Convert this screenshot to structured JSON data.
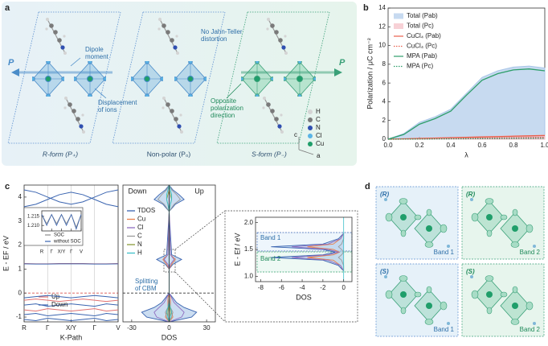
{
  "panel_labels": [
    "a",
    "b",
    "c",
    "d"
  ],
  "panel_a": {
    "annotations": [
      "Dipole moment",
      "No Jahn-Teller distortion",
      "Displacement of ions",
      "Opposite polarization direction"
    ],
    "polarization_symbols": [
      "P",
      "P"
    ],
    "legend": [
      {
        "name": "H",
        "color": "#d4d4d4"
      },
      {
        "name": "C",
        "color": "#7a7a7a"
      },
      {
        "name": "N",
        "color": "#2f4fb0"
      },
      {
        "name": "Cl",
        "color": "#5ab4e6"
      },
      {
        "name": "Cu",
        "color": "#1f9e6a"
      }
    ],
    "forms": [
      "R-form (P₊)",
      "Non-polar (P₀)",
      "S-form (P₋)"
    ],
    "axes": [
      "c",
      "a"
    ]
  },
  "chart_data": [
    {
      "type": "line",
      "xlabel": "λ",
      "ylabel": "Polarization / μC cm⁻²",
      "x": [
        0,
        0.1,
        0.2,
        0.3,
        0.4,
        0.5,
        0.6,
        0.7,
        0.8,
        0.9,
        1
      ],
      "xlim": [
        0,
        1
      ],
      "xticks": [
        {
          "value": 0,
          "label": "0.0"
        },
        {
          "value": 0.2,
          "label": "0.2"
        },
        {
          "value": 0.4,
          "label": "0.4"
        },
        {
          "value": 0.6,
          "label": "0.6"
        },
        {
          "value": 0.8,
          "label": "0.8"
        },
        {
          "value": 1,
          "label": "1.0"
        }
      ],
      "ylim": [
        0,
        14
      ],
      "yticks": [
        0,
        2,
        4,
        6,
        8,
        10,
        12,
        14
      ],
      "legend": "upper left",
      "series": [
        {
          "name": "Total (Pab)",
          "color": "#a9c6e8",
          "style": "area",
          "values": [
            0,
            0.6,
            1.8,
            2.4,
            3.2,
            4.9,
            6.6,
            7.3,
            7.7,
            7.8,
            7.6
          ]
        },
        {
          "name": "Total (Pc)",
          "color": "#f2b8c0",
          "style": "area",
          "values": [
            0,
            0.05,
            0.1,
            0.14,
            0.18,
            0.22,
            0.27,
            0.31,
            0.35,
            0.39,
            0.43
          ]
        },
        {
          "name": "CuCl₄ (Pab)",
          "color": "#e8604c",
          "style": "solid",
          "values": [
            0,
            0.04,
            0.08,
            0.12,
            0.16,
            0.2,
            0.24,
            0.28,
            0.32,
            0.36,
            0.4
          ]
        },
        {
          "name": "CuCl₄ (Pc)",
          "color": "#e8604c",
          "style": "dotted",
          "values": [
            0,
            0.02,
            0.04,
            0.06,
            0.08,
            0.1,
            0.12,
            0.14,
            0.16,
            0.18,
            0.2
          ]
        },
        {
          "name": "MPA (Pab)",
          "color": "#2e9e6a",
          "style": "solid",
          "values": [
            0,
            0.5,
            1.6,
            2.2,
            3.0,
            4.7,
            6.3,
            7.0,
            7.4,
            7.5,
            7.3
          ]
        },
        {
          "name": "MPA (Pc)",
          "color": "#2e9e6a",
          "style": "dotted",
          "values": [
            0,
            0.01,
            0.02,
            0.03,
            0.04,
            0.05,
            0.06,
            0.07,
            0.08,
            0.09,
            0.1
          ]
        }
      ]
    },
    {
      "type": "band-structure",
      "xlabel": "K-Path",
      "ylabel": "E - EF / eV",
      "x": [
        0,
        0.5,
        1,
        1.5,
        2,
        2.5,
        3,
        3.5,
        4
      ],
      "xlim": [
        0,
        4
      ],
      "xticks": [
        {
          "value": 0,
          "label": "R"
        },
        {
          "value": 1,
          "label": "Γ"
        },
        {
          "value": 2,
          "label": "X/Y"
        },
        {
          "value": 3,
          "label": "Γ"
        },
        {
          "value": 4,
          "label": "V"
        }
      ],
      "ylim": [
        -1.2,
        4.5
      ],
      "yticks": [
        -1,
        0,
        1,
        2,
        3,
        4
      ],
      "series": [
        {
          "name": "Up",
          "color": "#e07070",
          "bands": [
            [
              1.23,
              1.22,
              1.22,
              1.23,
              1.23,
              1.23,
              1.22,
              1.22,
              1.23
            ],
            [
              -0.3,
              -0.25,
              -0.3,
              -0.35,
              -0.3,
              -0.25,
              -0.3,
              -0.35,
              -0.3
            ],
            [
              -0.7,
              -0.75,
              -0.65,
              -0.7,
              -0.75,
              -0.7,
              -0.65,
              -0.75,
              -0.7
            ]
          ]
        },
        {
          "name": "Down",
          "color": "#3a64b0",
          "bands": [
            [
              4.3,
              4.2,
              4.0,
              3.8,
              3.7,
              3.8,
              4.0,
              4.2,
              4.3
            ],
            [
              3.6,
              3.7,
              3.9,
              4.1,
              4.2,
              4.1,
              3.9,
              3.7,
              3.6
            ],
            [
              1.22,
              1.21,
              1.21,
              1.22,
              1.22,
              1.22,
              1.21,
              1.21,
              1.22
            ],
            [
              -0.2,
              -0.15,
              -0.1,
              -0.15,
              -0.2,
              -0.15,
              -0.1,
              -0.15,
              -0.2
            ],
            [
              -0.5,
              -0.45,
              -0.55,
              -0.5,
              -0.45,
              -0.5,
              -0.55,
              -0.45,
              -0.5
            ],
            [
              -0.9,
              -0.85,
              -0.95,
              -0.9,
              -0.85,
              -0.9,
              -0.95,
              -0.85,
              -0.9
            ],
            [
              -1.1,
              -1.15,
              -1.05,
              -1.1,
              -1.15,
              -1.1,
              -1.05,
              -1.15,
              -1.1
            ]
          ]
        }
      ]
    },
    {
      "type": "line",
      "x": [
        0,
        0.5,
        1,
        1.5,
        2,
        2.5,
        3,
        3.5,
        4
      ],
      "xlim": [
        0,
        4
      ],
      "xticks": [
        {
          "value": 0,
          "label": "R"
        },
        {
          "value": 1,
          "label": "Γ"
        },
        {
          "value": 2,
          "label": "X/Y"
        },
        {
          "value": 3,
          "label": "Γ"
        },
        {
          "value": 4,
          "label": "V"
        }
      ],
      "ylim": [
        1.207,
        1.218
      ],
      "yticks": [
        {
          "value": 1.21,
          "label": "1.210"
        },
        {
          "value": 1.215,
          "label": "1.215"
        }
      ],
      "legend": "lower center",
      "series": [
        {
          "name": "SOC",
          "color": "#8c8c8c",
          "style": "solid",
          "values": [
            1.216,
            1.211,
            1.216,
            1.211,
            1.216,
            1.211,
            1.216,
            1.209,
            1.216
          ]
        },
        {
          "name": "without SOC",
          "color": "#3a64b0",
          "style": "solid",
          "values": [
            1.216,
            1.21,
            1.216,
            1.21,
            1.216,
            1.21,
            1.216,
            1.208,
            1.216
          ]
        }
      ]
    },
    {
      "type": "dos",
      "xlabel": "DOS",
      "spin_labels": [
        "Down",
        "Up"
      ],
      "xlim": [
        -37,
        37
      ],
      "xticks": [
        -30,
        0,
        30
      ],
      "ylim": [
        -1.2,
        4.5
      ],
      "energies": [
        -1.2,
        -1.0,
        -0.8,
        -0.6,
        -0.4,
        -0.2,
        0,
        1.0,
        1.2,
        1.4,
        1.6,
        3.4,
        3.7,
        3.9,
        4.1,
        4.3,
        4.5
      ],
      "series": [
        {
          "name": "TDOS",
          "color": "#3a64b0",
          "down": [
            0,
            -18,
            -22,
            -12,
            -6,
            -3,
            0,
            0,
            -3,
            -10,
            -2,
            0,
            -5,
            -12,
            -8,
            -3,
            0
          ],
          "up": [
            0,
            18,
            22,
            12,
            6,
            3,
            0,
            0,
            3,
            10,
            2,
            0,
            5,
            12,
            8,
            3,
            0
          ]
        },
        {
          "name": "Cu",
          "color": "#e8804c",
          "down": [
            0,
            -3,
            -2,
            -1,
            -1,
            -1,
            0,
            0,
            -2,
            -5,
            -1,
            0,
            0,
            0,
            0,
            0,
            0
          ],
          "up": [
            0,
            3,
            2,
            1,
            1,
            1,
            0,
            0,
            2,
            5,
            1,
            0,
            0,
            0,
            0,
            0,
            0
          ]
        },
        {
          "name": "Cl",
          "color": "#8f6cc0",
          "down": [
            0,
            -10,
            -12,
            -8,
            -4,
            -2,
            0,
            0,
            -1,
            -4,
            -1,
            0,
            0,
            0,
            0,
            0,
            0
          ],
          "up": [
            0,
            10,
            12,
            8,
            4,
            2,
            0,
            0,
            1,
            4,
            1,
            0,
            0,
            0,
            0,
            0,
            0
          ]
        },
        {
          "name": "C",
          "color": "#9a9a9a",
          "down": [
            0,
            -2,
            -3,
            -1,
            -0.5,
            0,
            0,
            0,
            0,
            0,
            0,
            0,
            -4,
            -9,
            -6,
            -2,
            0
          ],
          "up": [
            0,
            2,
            3,
            1,
            0.5,
            0,
            0,
            0,
            0,
            0,
            0,
            0,
            4,
            9,
            6,
            2,
            0
          ]
        },
        {
          "name": "N",
          "color": "#8a9a3a",
          "down": [
            0,
            -1,
            -1,
            -0.5,
            0,
            0,
            0,
            0,
            0,
            0,
            0,
            0,
            -1,
            -2,
            -1,
            0,
            0
          ],
          "up": [
            0,
            1,
            1,
            0.5,
            0,
            0,
            0,
            0,
            0,
            0,
            0,
            0,
            1,
            2,
            1,
            0,
            0
          ]
        },
        {
          "name": "H",
          "color": "#3bbfc9",
          "down": [
            0,
            -1,
            -2,
            -1,
            0,
            0,
            0,
            0,
            0,
            0,
            0,
            0,
            -1,
            -2,
            -2,
            -1,
            0
          ],
          "up": [
            0,
            1,
            2,
            1,
            0,
            0,
            0,
            0,
            0,
            0,
            0,
            0,
            1,
            2,
            2,
            1,
            0
          ]
        }
      ]
    },
    {
      "type": "dos",
      "xlabel": "DOS",
      "ylabel": "E - Ef / eV",
      "box_labels": [
        "Band 1",
        "Band 2"
      ],
      "xlim": [
        -8.5,
        0.8
      ],
      "xticks": [
        -8,
        -6,
        -4,
        -2,
        0
      ],
      "ylim": [
        0.9,
        2.1
      ],
      "yticks": [
        {
          "value": 1,
          "label": "1.0"
        },
        {
          "value": 1.5,
          "label": "1.5"
        },
        {
          "value": 2,
          "label": "2.0"
        }
      ],
      "energies": [
        1.1,
        1.2,
        1.3,
        1.35,
        1.4,
        1.45,
        1.5,
        1.55,
        1.6,
        1.7,
        1.8
      ],
      "series": [
        {
          "color": "#3a64b0",
          "down": [
            0,
            -0.5,
            -2,
            -7,
            -2,
            -0.8,
            -2,
            -7,
            -2,
            -0.5,
            0
          ]
        },
        {
          "color": "#e8804c",
          "down": [
            0,
            -0.3,
            -1,
            -3.5,
            -1,
            -0.4,
            -1,
            -3.5,
            -1,
            -0.3,
            0
          ]
        },
        {
          "color": "#8f6cc0",
          "down": [
            0,
            -0.3,
            -1.5,
            -5,
            -1.5,
            -0.5,
            -1.5,
            -5,
            -1.5,
            -0.3,
            0
          ]
        },
        {
          "color": "#9a9a9a",
          "down": [
            0,
            0,
            -0.2,
            -0.5,
            -0.2,
            0,
            -0.2,
            -0.5,
            -0.2,
            0,
            0
          ]
        }
      ]
    }
  ],
  "panel_c_annotation": "Splitting of CBM",
  "panel_d": {
    "labels": [
      "(R)",
      "(R)",
      "(S)",
      "(S)"
    ],
    "bands": [
      "Band 1",
      "Band 2",
      "Band 1",
      "Band 2"
    ]
  }
}
